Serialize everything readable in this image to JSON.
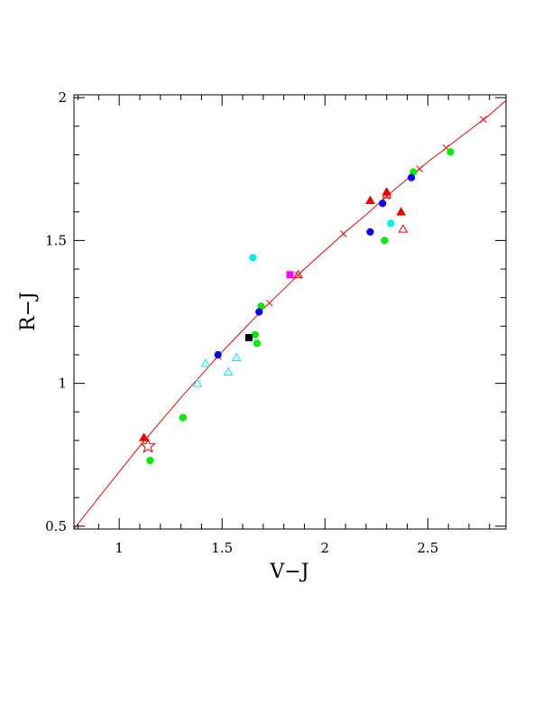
{
  "chart_data": {
    "type": "scatter",
    "xlabel": "V−J",
    "ylabel": "R−J",
    "xlim": [
      0.78,
      2.88
    ],
    "ylim": [
      0.49,
      2.01
    ],
    "xticks": [
      {
        "value": 1,
        "label": "1"
      },
      {
        "value": 1.5,
        "label": "1.5"
      },
      {
        "value": 2,
        "label": "2"
      },
      {
        "value": 2.5,
        "label": "2.5"
      }
    ],
    "yticks": [
      {
        "value": 0.5,
        "label": "0.5"
      },
      {
        "value": 1,
        "label": "1"
      },
      {
        "value": 1.5,
        "label": "1.5"
      },
      {
        "value": 2,
        "label": "2"
      }
    ],
    "x_minor_step": 0.1,
    "y_minor_step": 0.1,
    "grid": false,
    "curve": {
      "color": "#ff0000",
      "x": [
        0.78,
        0.9,
        1.0,
        1.1,
        1.2,
        1.3,
        1.4,
        1.5,
        1.6,
        1.7,
        1.8,
        1.9,
        2.0,
        2.1,
        2.2,
        2.3,
        2.4,
        2.5,
        2.6,
        2.7,
        2.8,
        2.88
      ],
      "y": [
        0.49,
        0.6,
        0.69,
        0.78,
        0.865,
        0.95,
        1.03,
        1.11,
        1.185,
        1.26,
        1.33,
        1.4,
        1.465,
        1.53,
        1.59,
        1.655,
        1.715,
        1.775,
        1.83,
        1.885,
        1.94,
        1.99
      ],
      "cross_marks_x": [
        1.13,
        1.48,
        1.73,
        1.87,
        2.09,
        2.3,
        2.46,
        2.59,
        2.77
      ]
    },
    "series": [
      {
        "marker": "circle",
        "color": "#00ee00",
        "filled": true,
        "x": [
          1.15,
          1.31,
          1.66,
          1.67,
          1.69,
          2.29,
          2.43,
          2.61
        ],
        "y": [
          0.73,
          0.88,
          1.17,
          1.14,
          1.27,
          1.5,
          1.74,
          1.81
        ]
      },
      {
        "marker": "circle",
        "color": "#0000ff",
        "filled": true,
        "x": [
          1.48,
          1.68,
          2.22,
          2.28,
          2.42
        ],
        "y": [
          1.1,
          1.25,
          1.53,
          1.63,
          1.72
        ]
      },
      {
        "marker": "circle",
        "color": "#00eeee",
        "filled": true,
        "x": [
          1.65,
          2.32
        ],
        "y": [
          1.44,
          1.56
        ]
      },
      {
        "marker": "triangle",
        "color": "#00eeee",
        "filled": false,
        "x": [
          1.38,
          1.42,
          1.53,
          1.57
        ],
        "y": [
          1.0,
          1.07,
          1.04,
          1.09
        ]
      },
      {
        "marker": "triangle",
        "color": "#ee0000",
        "filled": true,
        "x": [
          1.12,
          2.22,
          2.3,
          2.37
        ],
        "y": [
          0.81,
          1.64,
          1.67,
          1.6
        ]
      },
      {
        "marker": "triangle",
        "color": "#ee0000",
        "filled": false,
        "x": [
          1.87,
          2.3,
          2.38
        ],
        "y": [
          1.38,
          1.66,
          1.54
        ]
      },
      {
        "marker": "square",
        "color": "#ff00ff",
        "filled": true,
        "x": [
          1.83
        ],
        "y": [
          1.38
        ]
      },
      {
        "marker": "square",
        "color": "#000000",
        "filled": true,
        "x": [
          1.63
        ],
        "y": [
          1.16
        ]
      },
      {
        "marker": "star",
        "color": "#ee0000",
        "filled": false,
        "x": [
          1.14
        ],
        "y": [
          0.78
        ]
      }
    ]
  }
}
